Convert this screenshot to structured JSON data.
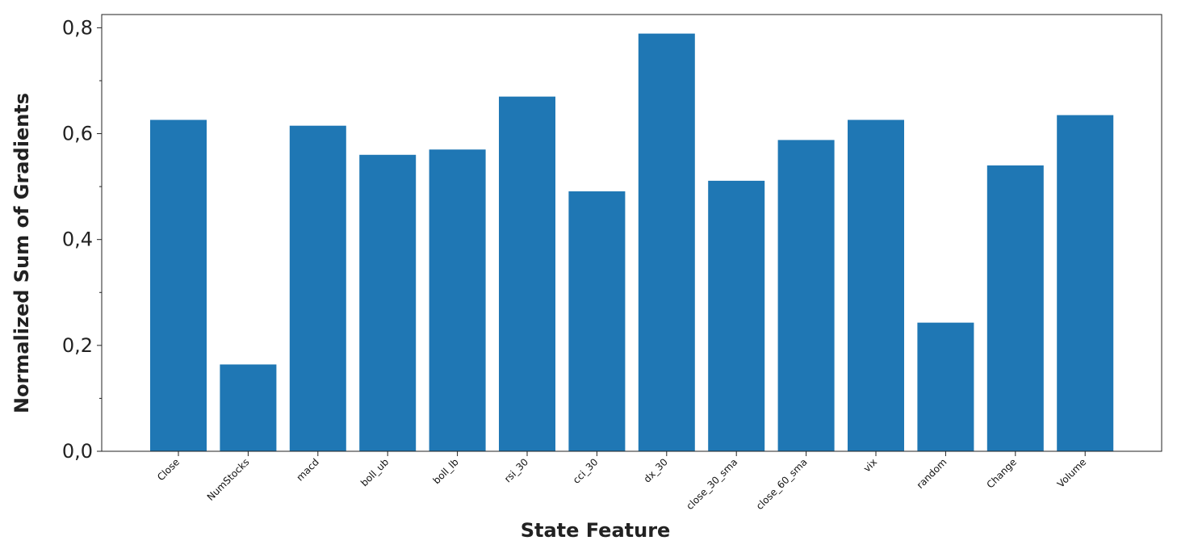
{
  "chart_data": {
    "type": "bar",
    "title": "",
    "xlabel": "State Feature",
    "ylabel": "Normalized Sum of Gradients",
    "categories": [
      "Close",
      "NumStocks",
      "macd",
      "boll_ub",
      "boll_lb",
      "rsi_30",
      "cci_30",
      "dx_30",
      "close_30_sma",
      "close_60_sma",
      "vix",
      "random",
      "Change",
      "Volume"
    ],
    "values": [
      0.626,
      0.164,
      0.615,
      0.56,
      0.57,
      0.67,
      0.491,
      0.789,
      0.511,
      0.588,
      0.626,
      0.243,
      0.54,
      0.635
    ],
    "ylim": [
      0,
      0.825
    ],
    "yticks": [
      0.0,
      0.2,
      0.4,
      0.6,
      0.8
    ],
    "ytick_labels": [
      "0,0",
      "0,2",
      "0,4",
      "0,6",
      "0,8"
    ],
    "yminor_ticks": [
      0.1,
      0.3,
      0.5,
      0.7
    ],
    "bar_color": "#1f77b4",
    "grid": false,
    "legend": "none"
  }
}
